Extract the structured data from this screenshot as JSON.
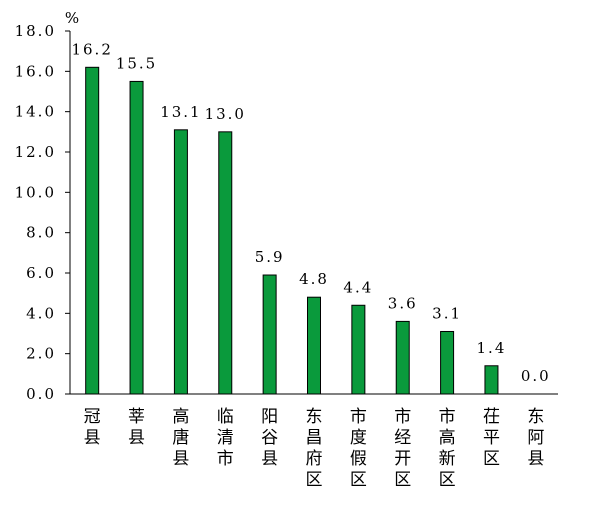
{
  "chart_data": {
    "type": "bar",
    "categories": [
      "冠县",
      "莘县",
      "高唐县",
      "临清市",
      "阳谷县",
      "东昌府区",
      "市度假区",
      "市经开区",
      "市高新区",
      "茌平区",
      "东阿县"
    ],
    "values": [
      16.2,
      15.5,
      13.1,
      13.0,
      5.9,
      4.8,
      4.4,
      3.6,
      3.1,
      1.4,
      0.0
    ],
    "value_labels": [
      "16.2",
      "15.5",
      "13.1",
      "13.0",
      "5.9",
      "4.8",
      "4.4",
      "3.6",
      "3.1",
      "1.4",
      "0.0"
    ],
    "yunit": "%",
    "ylim": [
      0,
      18
    ],
    "yticks": [
      "0.0",
      "2.0",
      "4.0",
      "6.0",
      "8.0",
      "10.0",
      "12.0",
      "14.0",
      "16.0",
      "18.0"
    ],
    "grid": false,
    "bar_color": "#0a9a3c",
    "bar_edge_color": "#000000"
  }
}
